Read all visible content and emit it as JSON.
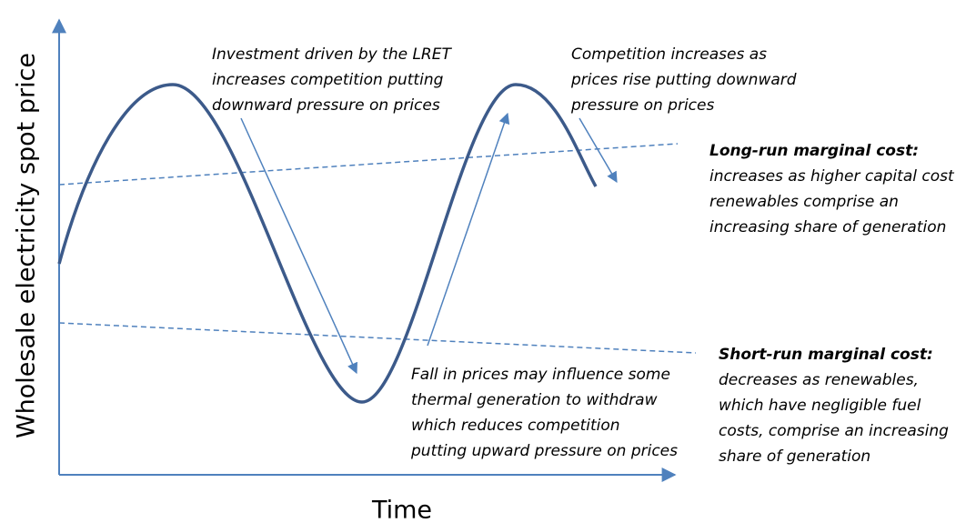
{
  "y_axis_label": "Wholesale electricity spot price",
  "x_axis_label": "Time",
  "annotations": [
    {
      "lines": [
        "Investment driven by the LRET",
        "increases competition putting",
        "downward pressure on prices"
      ]
    },
    {
      "lines": [
        "Competition increases as",
        "prices rise putting downward",
        "pressure on prices"
      ]
    },
    {
      "lines": [
        "Fall in prices may influence some",
        "thermal generation to withdraw",
        "which reduces competition",
        "putting upward pressure on prices"
      ]
    }
  ],
  "long_run": {
    "title": "Long-run marginal cost:",
    "lines": [
      "increases as higher capital cost",
      "renewables comprise an",
      "increasing share of generation"
    ]
  },
  "short_run": {
    "title": "Short-run marginal cost:",
    "lines": [
      "decreases as renewables,",
      "which have negligible fuel",
      "costs, comprise an increasing",
      "share of generation"
    ]
  }
}
